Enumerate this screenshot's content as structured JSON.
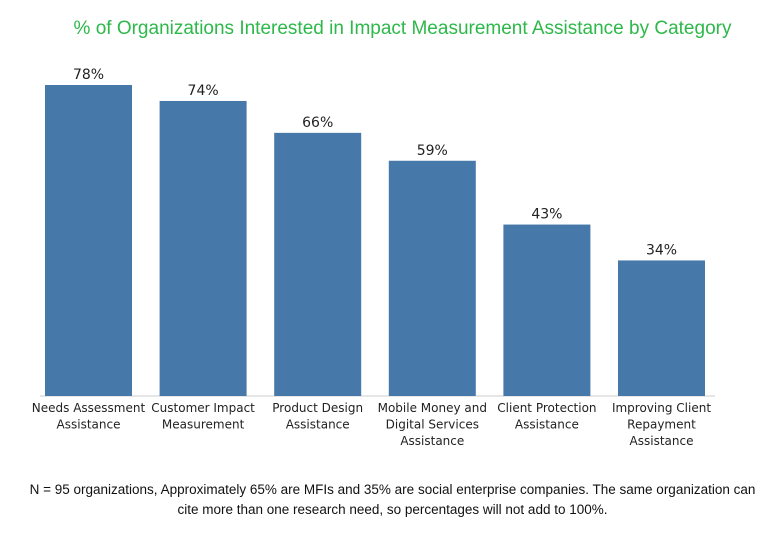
{
  "chart_data": {
    "type": "bar",
    "title": "% of Organizations Interested in Impact Measurement Assistance by Category",
    "categories": [
      [
        "Needs Assessment",
        "Assistance"
      ],
      [
        "Customer Impact",
        "Measurement"
      ],
      [
        "Product Design",
        "Assistance"
      ],
      [
        "Mobile Money and",
        "Digital Services",
        "Assistance"
      ],
      [
        "Client Protection",
        "Assistance"
      ],
      [
        "Improving Client",
        "Repayment",
        "Assistance"
      ]
    ],
    "values": [
      78,
      74,
      66,
      59,
      43,
      34
    ],
    "value_labels": [
      "78%",
      "74%",
      "66%",
      "59%",
      "43%",
      "34%"
    ],
    "ylim": [
      0,
      78
    ],
    "bar_color": "#4679aa",
    "title_color": "#2db84a",
    "grid": false,
    "legend": false
  },
  "footnote": "N = 95 organizations, Approximately 65% are MFIs and 35% are social enterprise companies. The same organization can cite more than one research need, so percentages will not add to 100%."
}
